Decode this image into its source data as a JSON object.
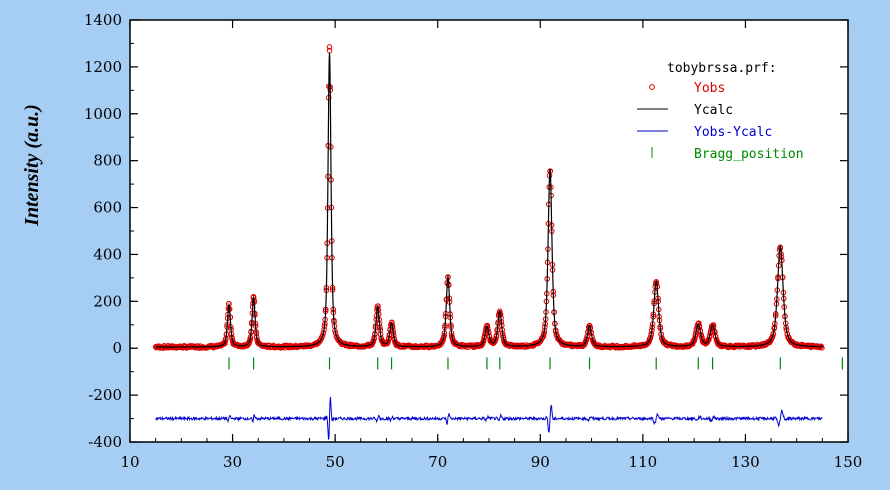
{
  "chart_data": {
    "type": "scatter",
    "title": "",
    "xlabel": "",
    "ylabel": "Intensity (a.u.)",
    "xlim": [
      10,
      150
    ],
    "ylim": [
      -400,
      1400
    ],
    "x_ticks": [
      10,
      30,
      50,
      70,
      90,
      110,
      130,
      150
    ],
    "y_ticks": [
      -400,
      -200,
      0,
      200,
      400,
      600,
      800,
      1000,
      1200,
      1400
    ],
    "x_range_data": [
      15,
      145
    ],
    "grid": false,
    "legend_position": "top-right",
    "legend_title": "tobybrssa.prf:",
    "colors": {
      "yobs": "#dd0000",
      "ycalc": "#000000",
      "diff": "#0000cc",
      "bragg": "#008800",
      "background": "#a6cdf4",
      "plot": "#ffffff"
    },
    "peaks": [
      {
        "x": 29.3,
        "height": 180,
        "width": 0.35
      },
      {
        "x": 34.1,
        "height": 210,
        "width": 0.35
      },
      {
        "x": 48.9,
        "height": 1255,
        "width": 0.35
      },
      {
        "x": 58.3,
        "height": 170,
        "width": 0.4
      },
      {
        "x": 61.0,
        "height": 100,
        "width": 0.4
      },
      {
        "x": 72.0,
        "height": 300,
        "width": 0.4
      },
      {
        "x": 79.6,
        "height": 85,
        "width": 0.45
      },
      {
        "x": 82.1,
        "height": 150,
        "width": 0.45
      },
      {
        "x": 91.9,
        "height": 760,
        "width": 0.45
      },
      {
        "x": 99.6,
        "height": 90,
        "width": 0.45
      },
      {
        "x": 112.6,
        "height": 280,
        "width": 0.55
      },
      {
        "x": 120.8,
        "height": 95,
        "width": 0.55
      },
      {
        "x": 123.6,
        "height": 90,
        "width": 0.55
      },
      {
        "x": 136.8,
        "height": 430,
        "width": 0.65
      }
    ],
    "bragg_positions": [
      29.3,
      34.1,
      48.9,
      58.3,
      61.0,
      72.0,
      79.6,
      82.1,
      91.9,
      99.6,
      112.6,
      120.8,
      123.6,
      136.8,
      148.9
    ],
    "bragg_marker_y": -65,
    "diff_offset": -300,
    "series": [
      {
        "name": "Yobs",
        "style": "open-circle",
        "color": "#dd0000"
      },
      {
        "name": "Ycalc",
        "style": "line",
        "color": "#000000"
      },
      {
        "name": "Yobs-Ycalc",
        "style": "line",
        "color": "#0000cc"
      },
      {
        "name": "Bragg_position",
        "style": "tick",
        "color": "#008800"
      }
    ]
  }
}
